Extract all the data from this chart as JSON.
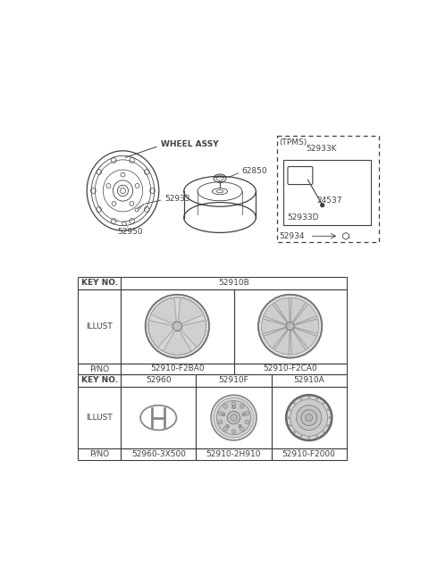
{
  "bg_color": "#ffffff",
  "line_color": "#404040",
  "table": {
    "col1_header": "KEY NO.",
    "col2_header": "52910B",
    "row1_label": "ILLUST",
    "row1_pno_label": "P/NO",
    "row1_pno_col1": "52910-F2BA0",
    "row1_pno_col2": "52910-F2CA0",
    "row2_key_col1": "52960",
    "row2_key_col2": "52910F",
    "row2_key_col3": "52910A",
    "row2_label": "ILLUST",
    "row2_pno_label": "P/NO",
    "row2_pno_col1": "52960-3X500",
    "row2_pno_col2": "52910-2H910",
    "row2_pno_col3": "52910-F2000"
  },
  "top_labels": {
    "wheel_assy": "WHEEL ASSY",
    "part_62850": "62850",
    "part_52933": "52933",
    "part_52950": "52950"
  },
  "tpms_label": "(TPMS)",
  "tpms_parts": [
    "52933K",
    "24537",
    "52933D",
    "52934"
  ]
}
